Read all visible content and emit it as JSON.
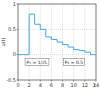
{
  "chart_data": {
    "type": "line",
    "y_label": "u(t)",
    "x_label": "t",
    "annotations": [
      "P₁ = 1/2L",
      "P₂ = 0.5"
    ],
    "x": [
      0,
      1,
      2,
      3,
      4,
      5,
      6,
      7,
      8,
      9,
      10,
      11,
      12,
      13,
      14
    ],
    "series": [
      {
        "name": "u(t)",
        "color": "#4aa3df",
        "line_style": "step",
        "values": [
          0,
          0,
          0.8,
          0.6,
          0.5,
          0.35,
          0.3,
          0.25,
          0.2,
          0.15,
          0.1,
          0.08,
          0.05,
          0,
          0
        ]
      }
    ],
    "xlim": [
      0,
      14
    ],
    "xticks": [
      0,
      2,
      4,
      6,
      8,
      10,
      12,
      14
    ],
    "ylim": [
      -0.5,
      1
    ],
    "yticks": [
      -0.5,
      0,
      0.5,
      1
    ],
    "grid": true
  }
}
